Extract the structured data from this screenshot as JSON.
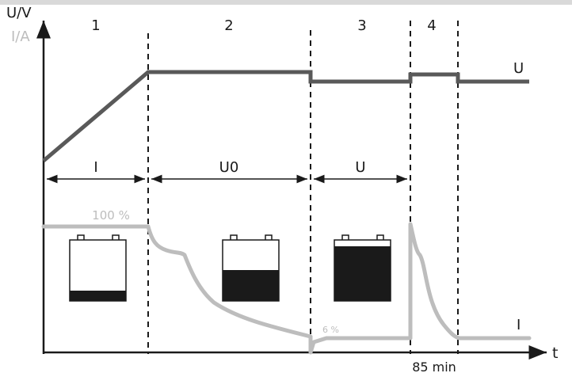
{
  "axes": {
    "y_label_voltage": "U/V",
    "y_label_current": "I/A",
    "x_label": "t",
    "x_marker": "85 min"
  },
  "phases": [
    "1",
    "2",
    "3",
    "4"
  ],
  "modes": [
    "I",
    "U0",
    "U"
  ],
  "curves": {
    "voltage_label": "U",
    "current_label": "I",
    "current_start_label": "100 %",
    "current_min_label": "6 %"
  },
  "colors": {
    "voltage": "#595959",
    "current": "#bdbdbd",
    "axis": "#1a1a1a",
    "battery_fill": "#1a1a1a",
    "top_band": "#d9d9d9"
  },
  "batteries": [
    {
      "charge_level": 0.2
    },
    {
      "charge_level": 0.5
    },
    {
      "charge_level": 0.9
    }
  ]
}
